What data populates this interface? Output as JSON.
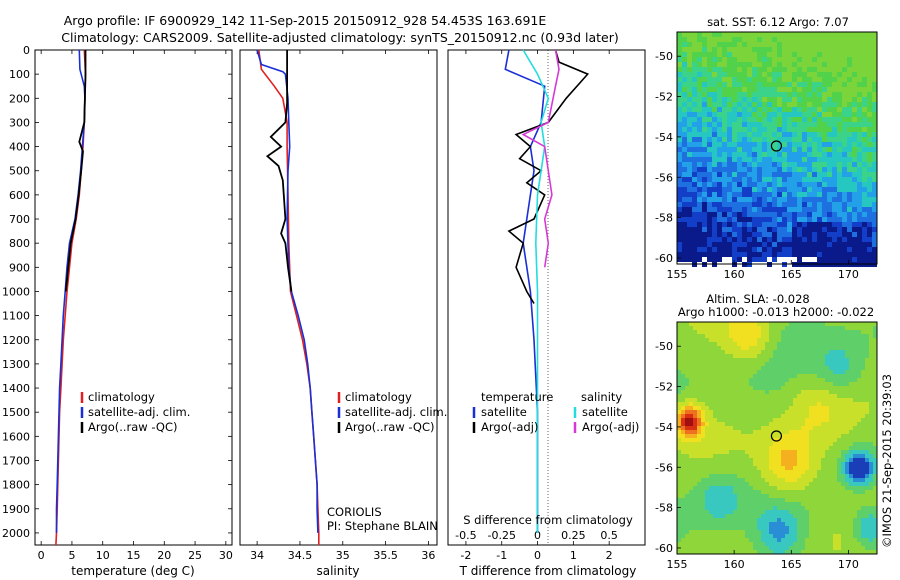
{
  "title": {
    "line1": "Argo profile: IF 6900929_142 11-Sep-2015 20150912_928 54.453S 163.691E",
    "line2": "Climatology: CARS2009. Satellite-adjusted climatology: synTS_20150912.nc (0.93d later)"
  },
  "depth_ticks": [
    "0",
    "100",
    "200",
    "300",
    "400",
    "500",
    "600",
    "700",
    "800",
    "900",
    "1000",
    "1100",
    "1200",
    "1300",
    "1400",
    "1500",
    "1600",
    "1700",
    "1800",
    "1900",
    "2000"
  ],
  "colors": {
    "climatology": "#e02020",
    "satellite": "#1a2fd6",
    "argo": "#000000",
    "satellite_s": "#22dde0",
    "argo_s": "#d63ad6"
  },
  "chart_data": [
    {
      "type": "line",
      "panel": "temperature",
      "xlabel": "temperature (deg C)",
      "ylabel": "",
      "xlim": [
        -1,
        31
      ],
      "ylim": [
        2050,
        0
      ],
      "xticks": [
        "0",
        "5",
        "10",
        "15",
        "20",
        "25",
        "30"
      ],
      "legend": [
        "climatology",
        "satellite-adj. clim.",
        "Argo(..raw -QC)"
      ],
      "series": [
        {
          "name": "climatology",
          "points": [
            [
              7.0,
              0
            ],
            [
              7.2,
              100
            ],
            [
              7.1,
              200
            ],
            [
              7.0,
              300
            ],
            [
              6.8,
              400
            ],
            [
              6.5,
              500
            ],
            [
              6.2,
              600
            ],
            [
              5.7,
              700
            ],
            [
              5.0,
              800
            ],
            [
              4.6,
              900
            ],
            [
              4.2,
              1000
            ],
            [
              3.9,
              1100
            ],
            [
              3.6,
              1200
            ],
            [
              3.4,
              1300
            ],
            [
              3.2,
              1400
            ],
            [
              3.0,
              1500
            ],
            [
              2.9,
              1600
            ],
            [
              2.8,
              1700
            ],
            [
              2.7,
              1800
            ],
            [
              2.6,
              1900
            ],
            [
              2.5,
              2000
            ],
            [
              2.4,
              2050
            ]
          ]
        },
        {
          "name": "satellite-adj. clim.",
          "points": [
            [
              6.2,
              0
            ],
            [
              6.3,
              80
            ],
            [
              7.0,
              150
            ],
            [
              7.1,
              200
            ],
            [
              7.0,
              300
            ],
            [
              6.7,
              400
            ],
            [
              6.4,
              500
            ],
            [
              6.0,
              600
            ],
            [
              5.5,
              700
            ],
            [
              4.6,
              800
            ],
            [
              4.2,
              900
            ],
            [
              3.9,
              1000
            ],
            [
              3.6,
              1100
            ],
            [
              3.4,
              1200
            ],
            [
              3.2,
              1300
            ],
            [
              3.0,
              1400
            ],
            [
              2.9,
              1500
            ],
            [
              2.8,
              1600
            ],
            [
              2.7,
              1700
            ],
            [
              2.6,
              1800
            ],
            [
              2.5,
              1900
            ],
            [
              2.5,
              2000
            ]
          ]
        },
        {
          "name": "Argo(..raw -QC)",
          "points": [
            [
              7.2,
              0
            ],
            [
              7.2,
              100
            ],
            [
              7.1,
              200
            ],
            [
              7.0,
              300
            ],
            [
              6.2,
              380
            ],
            [
              6.8,
              420
            ],
            [
              6.5,
              500
            ],
            [
              6.1,
              600
            ],
            [
              5.6,
              700
            ],
            [
              4.8,
              800
            ],
            [
              4.4,
              900
            ],
            [
              4.0,
              1000
            ]
          ]
        }
      ]
    },
    {
      "type": "line",
      "panel": "salinity",
      "xlabel": "salinity",
      "ylabel": "",
      "xlim": [
        33.8,
        36.1
      ],
      "ylim": [
        2050,
        0
      ],
      "xticks": [
        "34",
        "34.5",
        "35",
        "35.5",
        "36"
      ],
      "legend": [
        "climatology",
        "satellite-adj. clim.",
        "Argo(..raw -QC)"
      ],
      "annotation": [
        "CORIOLIS",
        "PI: Stephane BLAIN"
      ],
      "series": [
        {
          "name": "climatology",
          "points": [
            [
              34.02,
              0
            ],
            [
              34.05,
              80
            ],
            [
              34.2,
              150
            ],
            [
              34.3,
              200
            ],
            [
              34.35,
              300
            ],
            [
              34.35,
              400
            ],
            [
              34.36,
              600
            ],
            [
              34.37,
              800
            ],
            [
              34.39,
              1000
            ],
            [
              34.46,
              1100
            ],
            [
              34.53,
              1200
            ],
            [
              34.58,
              1300
            ],
            [
              34.62,
              1400
            ],
            [
              34.64,
              1500
            ],
            [
              34.66,
              1600
            ],
            [
              34.68,
              1700
            ],
            [
              34.7,
              1800
            ],
            [
              34.71,
              1900
            ],
            [
              34.72,
              2000
            ],
            [
              34.72,
              2050
            ]
          ]
        },
        {
          "name": "satellite-adj. clim.",
          "points": [
            [
              34.0,
              0
            ],
            [
              34.05,
              60
            ],
            [
              34.3,
              90
            ],
            [
              34.33,
              100
            ],
            [
              34.36,
              200
            ],
            [
              34.37,
              300
            ],
            [
              34.38,
              400
            ],
            [
              34.36,
              500
            ],
            [
              34.35,
              700
            ],
            [
              34.37,
              900
            ],
            [
              34.4,
              1000
            ],
            [
              34.48,
              1100
            ],
            [
              34.55,
              1200
            ],
            [
              34.59,
              1300
            ],
            [
              34.62,
              1400
            ],
            [
              34.64,
              1500
            ],
            [
              34.66,
              1600
            ],
            [
              34.68,
              1700
            ],
            [
              34.7,
              1800
            ],
            [
              34.7,
              1900
            ],
            [
              34.71,
              2000
            ]
          ]
        },
        {
          "name": "Argo(..raw -QC)",
          "points": [
            [
              34.35,
              0
            ],
            [
              34.35,
              220
            ],
            [
              34.33,
              300
            ],
            [
              34.16,
              360
            ],
            [
              34.28,
              400
            ],
            [
              34.12,
              440
            ],
            [
              34.25,
              480
            ],
            [
              34.3,
              540
            ],
            [
              34.33,
              700
            ],
            [
              34.28,
              760
            ],
            [
              34.33,
              800
            ],
            [
              34.36,
              900
            ],
            [
              34.4,
              1000
            ]
          ]
        }
      ]
    },
    {
      "type": "line",
      "panel": "difference",
      "xlabel": "T difference from climatology",
      "xlabel2": "S difference from climatology",
      "ylabel": "",
      "xlim": [
        -2.5,
        3.0
      ],
      "ylim": [
        2050,
        0
      ],
      "xticks": [
        "-2",
        "-1",
        "0",
        "1",
        "2"
      ],
      "xticks2": [
        "-0.5",
        "-0.25",
        "0",
        "0.25",
        "0.5"
      ],
      "legend": [
        "temperature",
        "satellite",
        "Argo(-adj)",
        "salinity",
        "satellite",
        "Argo(-adj)"
      ],
      "series": [
        {
          "name": "satellite",
          "points": [
            [
              -0.8,
              0
            ],
            [
              -0.9,
              80
            ],
            [
              0.2,
              150
            ],
            [
              0.1,
              300
            ],
            [
              -0.2,
              400
            ],
            [
              -0.1,
              500
            ],
            [
              -0.2,
              600
            ],
            [
              -0.3,
              700
            ],
            [
              -0.4,
              800
            ],
            [
              -0.3,
              900
            ],
            [
              -0.2,
              1000
            ],
            [
              -0.1,
              1200
            ],
            [
              0.0,
              1500
            ],
            [
              0.0,
              2000
            ]
          ]
        },
        {
          "name": "Argo(-adj)",
          "points": [
            [
              0.5,
              0
            ],
            [
              0.6,
              50
            ],
            [
              1.4,
              100
            ],
            [
              0.8,
              200
            ],
            [
              0.3,
              300
            ],
            [
              -0.6,
              350
            ],
            [
              -0.2,
              400
            ],
            [
              -0.5,
              450
            ],
            [
              0.1,
              500
            ],
            [
              -0.3,
              550
            ],
            [
              0.2,
              600
            ],
            [
              -0.1,
              700
            ],
            [
              -0.8,
              750
            ],
            [
              -0.4,
              800
            ],
            [
              -0.6,
              900
            ],
            [
              -0.3,
              1000
            ],
            [
              -0.1,
              1050
            ]
          ]
        },
        {
          "name": "satellite",
          "points": [
            [
              -0.4,
              0
            ],
            [
              0.0,
              100
            ],
            [
              0.3,
              200
            ],
            [
              0.1,
              300
            ],
            [
              0.2,
              400
            ],
            [
              0.0,
              600
            ],
            [
              -0.05,
              800
            ],
            [
              0.0,
              1000
            ],
            [
              0.0,
              1500
            ],
            [
              0.0,
              2000
            ]
          ]
        },
        {
          "name": "Argo(-adj)",
          "points": [
            [
              0.5,
              0
            ],
            [
              0.6,
              80
            ],
            [
              0.5,
              150
            ],
            [
              0.3,
              300
            ],
            [
              -0.4,
              350
            ],
            [
              0.2,
              400
            ],
            [
              0.3,
              500
            ],
            [
              0.4,
              600
            ],
            [
              0.2,
              700
            ],
            [
              0.3,
              800
            ],
            [
              0.2,
              900
            ]
          ]
        }
      ]
    },
    {
      "type": "heatmap",
      "panel": "sst_map",
      "title": "sat. SST: 6.12 Argo: 7.07",
      "xticks": [
        "155",
        "160",
        "165",
        "170"
      ],
      "yticks": [
        "-50",
        "-52",
        "-54",
        "-56",
        "-58",
        "-60"
      ],
      "xlim": [
        155,
        172.5
      ],
      "ylim": [
        -60.3,
        -48.8
      ],
      "profile_marker": [
        163.7,
        -54.45
      ]
    },
    {
      "type": "heatmap",
      "panel": "sla_map",
      "title": "Altim. SLA: -0.028",
      "subtitle": "Argo h1000: -0.013 h2000: -0.022",
      "xticks": [
        "155",
        "160",
        "165",
        "170"
      ],
      "yticks": [
        "-50",
        "-52",
        "-54",
        "-56",
        "-58",
        "-60"
      ],
      "xlim": [
        155,
        172.5
      ],
      "ylim": [
        -60.3,
        -48.8
      ],
      "profile_marker": [
        163.7,
        -54.45
      ]
    }
  ],
  "watermark": "©IMOS 21-Sep-2015 20:39:03"
}
